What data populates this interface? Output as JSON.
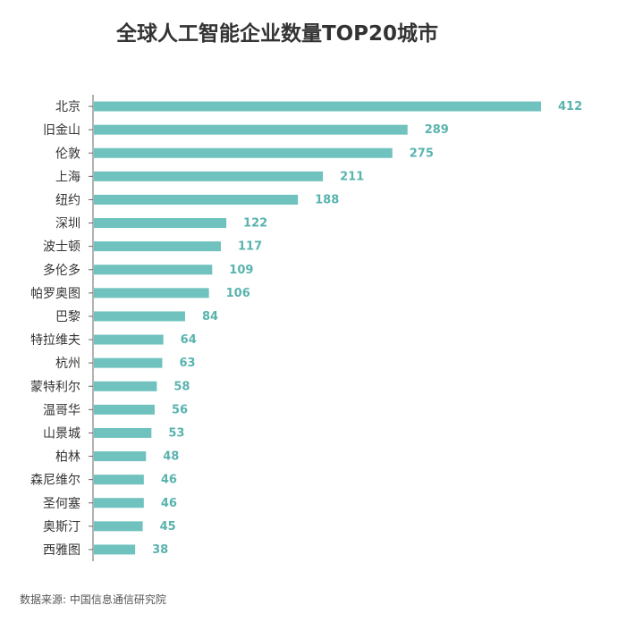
{
  "title": "全球人工智能企业数量TOP20城市",
  "source": "数据来源: 中国信息通信研究院",
  "colors": {
    "bar": "#6fc2bd",
    "value": "#59b3ae",
    "label": "#333333",
    "axis": "#666666"
  },
  "chart_data": {
    "type": "bar",
    "orientation": "horizontal",
    "categories": [
      "北京",
      "旧金山",
      "伦敦",
      "上海",
      "纽约",
      "深圳",
      "波士顿",
      "多伦多",
      "帕罗奥图",
      "巴黎",
      "特拉维夫",
      "杭州",
      "蒙特利尔",
      "温哥华",
      "山景城",
      "柏林",
      "森尼维尔",
      "圣何塞",
      "奥斯汀",
      "西雅图"
    ],
    "values": [
      412,
      289,
      275,
      211,
      188,
      122,
      117,
      109,
      106,
      84,
      64,
      63,
      58,
      56,
      53,
      48,
      46,
      46,
      45,
      38
    ],
    "value_labels": [
      "412",
      "289",
      "275",
      "211",
      "188",
      "122",
      "117",
      "109",
      "106",
      "84",
      "64",
      "63",
      "58",
      "56",
      "53",
      "48",
      "46",
      "46",
      "45",
      "38"
    ],
    "title": "全球人工智能企业数量TOP20城市",
    "xlim": [
      0,
      412
    ],
    "grid": false,
    "legend": "none"
  }
}
